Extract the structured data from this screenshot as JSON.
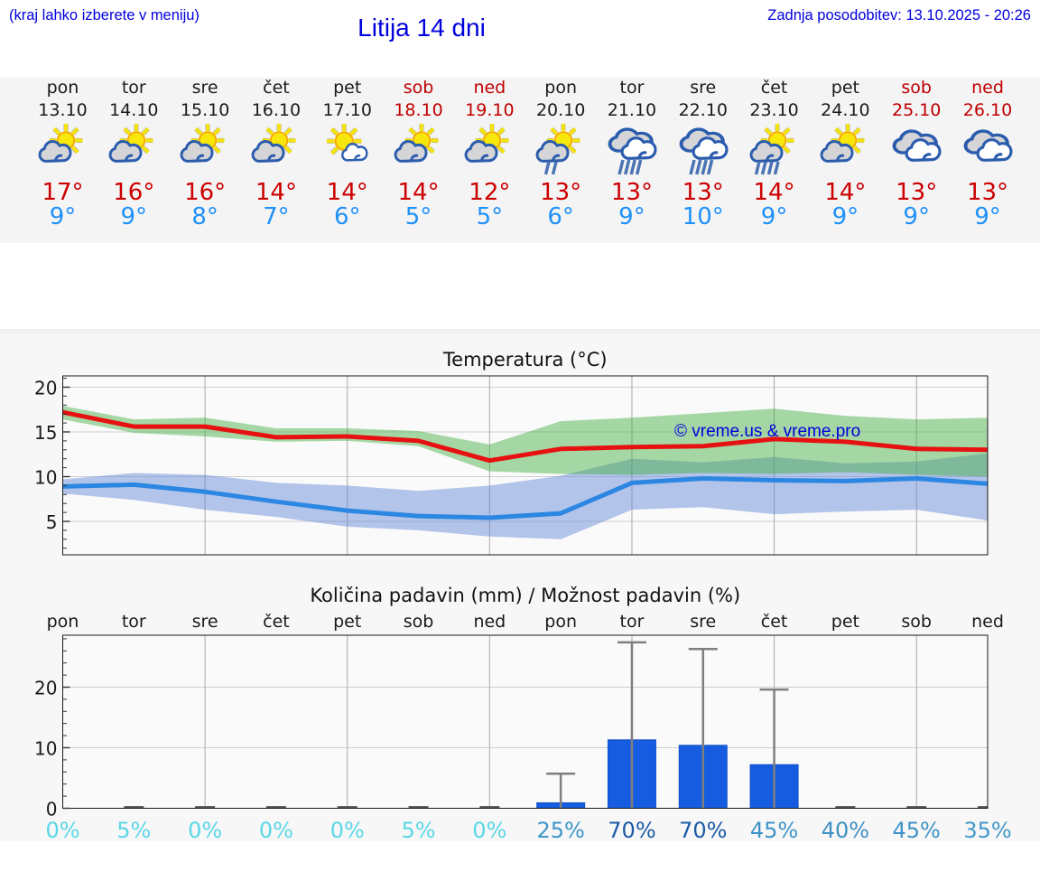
{
  "header": {
    "hint": "(kraj lahko izberete v meniju)",
    "title": "Litija 14 dni",
    "updated": "Zadnja posodobitev: 13.10.2025 - 20:26"
  },
  "colors": {
    "header_blue": "#0000dd",
    "strip_bg": "#f4f4f5",
    "section_bg": "#f7f7f8",
    "section_edge": "#efeff1",
    "plot_bg": "#fafafa",
    "weekend_red": "#c00000",
    "tmax_red": "#cc0000",
    "tmin_blue": "#1f91f8",
    "grid_h": "#cfcfcf",
    "grid_v": "#a9a9a9",
    "plot_border": "#1a1a1a",
    "tick": "#333333",
    "title_color": "#111111",
    "tick_label_color": "#1a1a1a",
    "watermark_blue": "#0000dd"
  },
  "days": [
    {
      "name": "pon",
      "date": "13.10",
      "weekend": false,
      "icon": "partly-sunny",
      "tmax": "17°",
      "tmin": "9°"
    },
    {
      "name": "tor",
      "date": "14.10",
      "weekend": false,
      "icon": "partly-sunny",
      "tmax": "16°",
      "tmin": "9°"
    },
    {
      "name": "sre",
      "date": "15.10",
      "weekend": false,
      "icon": "partly-sunny",
      "tmax": "16°",
      "tmin": "8°"
    },
    {
      "name": "čet",
      "date": "16.10",
      "weekend": false,
      "icon": "partly-sunny",
      "tmax": "14°",
      "tmin": "7°"
    },
    {
      "name": "pet",
      "date": "17.10",
      "weekend": false,
      "icon": "mostly-sunny",
      "tmax": "14°",
      "tmin": "6°"
    },
    {
      "name": "sob",
      "date": "18.10",
      "weekend": true,
      "icon": "partly-sunny",
      "tmax": "14°",
      "tmin": "5°"
    },
    {
      "name": "ned",
      "date": "19.10",
      "weekend": true,
      "icon": "partly-sunny",
      "tmax": "12°",
      "tmin": "5°"
    },
    {
      "name": "pon",
      "date": "20.10",
      "weekend": false,
      "icon": "sun-light-rain",
      "tmax": "13°",
      "tmin": "6°"
    },
    {
      "name": "tor",
      "date": "21.10",
      "weekend": false,
      "icon": "rain",
      "tmax": "13°",
      "tmin": "9°"
    },
    {
      "name": "sre",
      "date": "22.10",
      "weekend": false,
      "icon": "rain",
      "tmax": "13°",
      "tmin": "10°"
    },
    {
      "name": "čet",
      "date": "23.10",
      "weekend": false,
      "icon": "sun-rain",
      "tmax": "14°",
      "tmin": "9°"
    },
    {
      "name": "pet",
      "date": "24.10",
      "weekend": false,
      "icon": "partly-sunny",
      "tmax": "14°",
      "tmin": "9°"
    },
    {
      "name": "sob",
      "date": "25.10",
      "weekend": true,
      "icon": "cloudy",
      "tmax": "13°",
      "tmin": "9°"
    },
    {
      "name": "ned",
      "date": "26.10",
      "weekend": true,
      "icon": "cloudy",
      "tmax": "13°",
      "tmin": "9°"
    }
  ],
  "chart_data": [
    {
      "type": "line",
      "title": "Temperatura (°C)",
      "watermark": "© vreme.us & vreme.pro",
      "x_day_count": 14,
      "yticks": [
        5,
        10,
        15,
        20
      ],
      "ylim": [
        1.3,
        21.3
      ],
      "grid_x_days": [
        3,
        5,
        7,
        9,
        11,
        13
      ],
      "series": [
        {
          "name": "max-temp",
          "color": "#e61212",
          "values": [
            17.2,
            15.6,
            15.6,
            14.4,
            14.5,
            14.0,
            11.8,
            13.1,
            13.3,
            13.4,
            14.2,
            13.9,
            13.1,
            13.0
          ]
        },
        {
          "name": "min-temp",
          "color": "#2b87e2",
          "values": [
            8.9,
            9.1,
            8.3,
            7.2,
            6.2,
            5.6,
            5.4,
            5.9,
            9.3,
            9.8,
            9.6,
            9.5,
            9.8,
            9.2
          ]
        }
      ],
      "bands": [
        {
          "name": "min-temp-range",
          "color": "#5b82d6",
          "opacity": 0.45,
          "hi": [
            9.7,
            10.4,
            10.2,
            9.3,
            9.0,
            8.4,
            9.0,
            10.1,
            12.0,
            11.6,
            12.2,
            11.5,
            11.7,
            12.6
          ],
          "lo": [
            8.1,
            7.4,
            6.3,
            5.5,
            4.4,
            4.0,
            3.3,
            3.0,
            6.3,
            6.6,
            5.8,
            6.1,
            6.3,
            5.1
          ]
        },
        {
          "name": "max-temp-range",
          "color": "#3fae3f",
          "opacity": 0.45,
          "hi": [
            17.9,
            16.4,
            16.6,
            15.4,
            15.4,
            15.1,
            13.6,
            16.2,
            16.6,
            17.1,
            17.6,
            16.8,
            16.4,
            16.6
          ],
          "lo": [
            16.4,
            14.9,
            14.5,
            13.9,
            14.0,
            13.4,
            10.6,
            10.3,
            10.2,
            10.4,
            10.3,
            10.5,
            10.2,
            10.0
          ]
        }
      ],
      "legend_position": "none",
      "grid": true
    },
    {
      "type": "bar",
      "title": "Količina padavin (mm) / Možnost padavin (%)",
      "day_labels": [
        "pon",
        "tor",
        "sre",
        "čet",
        "pet",
        "sob",
        "ned",
        "pon",
        "tor",
        "sre",
        "čet",
        "pet",
        "sob",
        "ned"
      ],
      "yticks": [
        0,
        10,
        20
      ],
      "ylim": [
        0,
        28.6
      ],
      "grid_x_days": [
        3,
        5,
        7,
        9,
        11,
        13
      ],
      "bar_values_mm": [
        0,
        0,
        0,
        0,
        0,
        0,
        0,
        0.9,
        11.3,
        10.4,
        7.2,
        0,
        0,
        0
      ],
      "whisker_values_mm": [
        0,
        0,
        0,
        0,
        0,
        0,
        0,
        5.7,
        27.4,
        26.3,
        19.6,
        0,
        0,
        0
      ],
      "bar_color": "#155ce0",
      "bar_edge_color": "#1350c8",
      "whisker_color": "#7f7f7f",
      "zero_mark_color": "#555555",
      "probabilities": [
        {
          "label": "0%",
          "color": "#5bd7e6"
        },
        {
          "label": "5%",
          "color": "#5bd7e6"
        },
        {
          "label": "0%",
          "color": "#5bd7e6"
        },
        {
          "label": "0%",
          "color": "#5bd7e6"
        },
        {
          "label": "0%",
          "color": "#5bd7e6"
        },
        {
          "label": "5%",
          "color": "#5bd7e6"
        },
        {
          "label": "0%",
          "color": "#5bd7e6"
        },
        {
          "label": "25%",
          "color": "#3e96c9"
        },
        {
          "label": "70%",
          "color": "#1c5ba6"
        },
        {
          "label": "70%",
          "color": "#1c5ba6"
        },
        {
          "label": "45%",
          "color": "#3e93c6"
        },
        {
          "label": "40%",
          "color": "#3f90c2"
        },
        {
          "label": "45%",
          "color": "#3e93c6"
        },
        {
          "label": "35%",
          "color": "#4599c9"
        }
      ],
      "grid": true
    }
  ]
}
